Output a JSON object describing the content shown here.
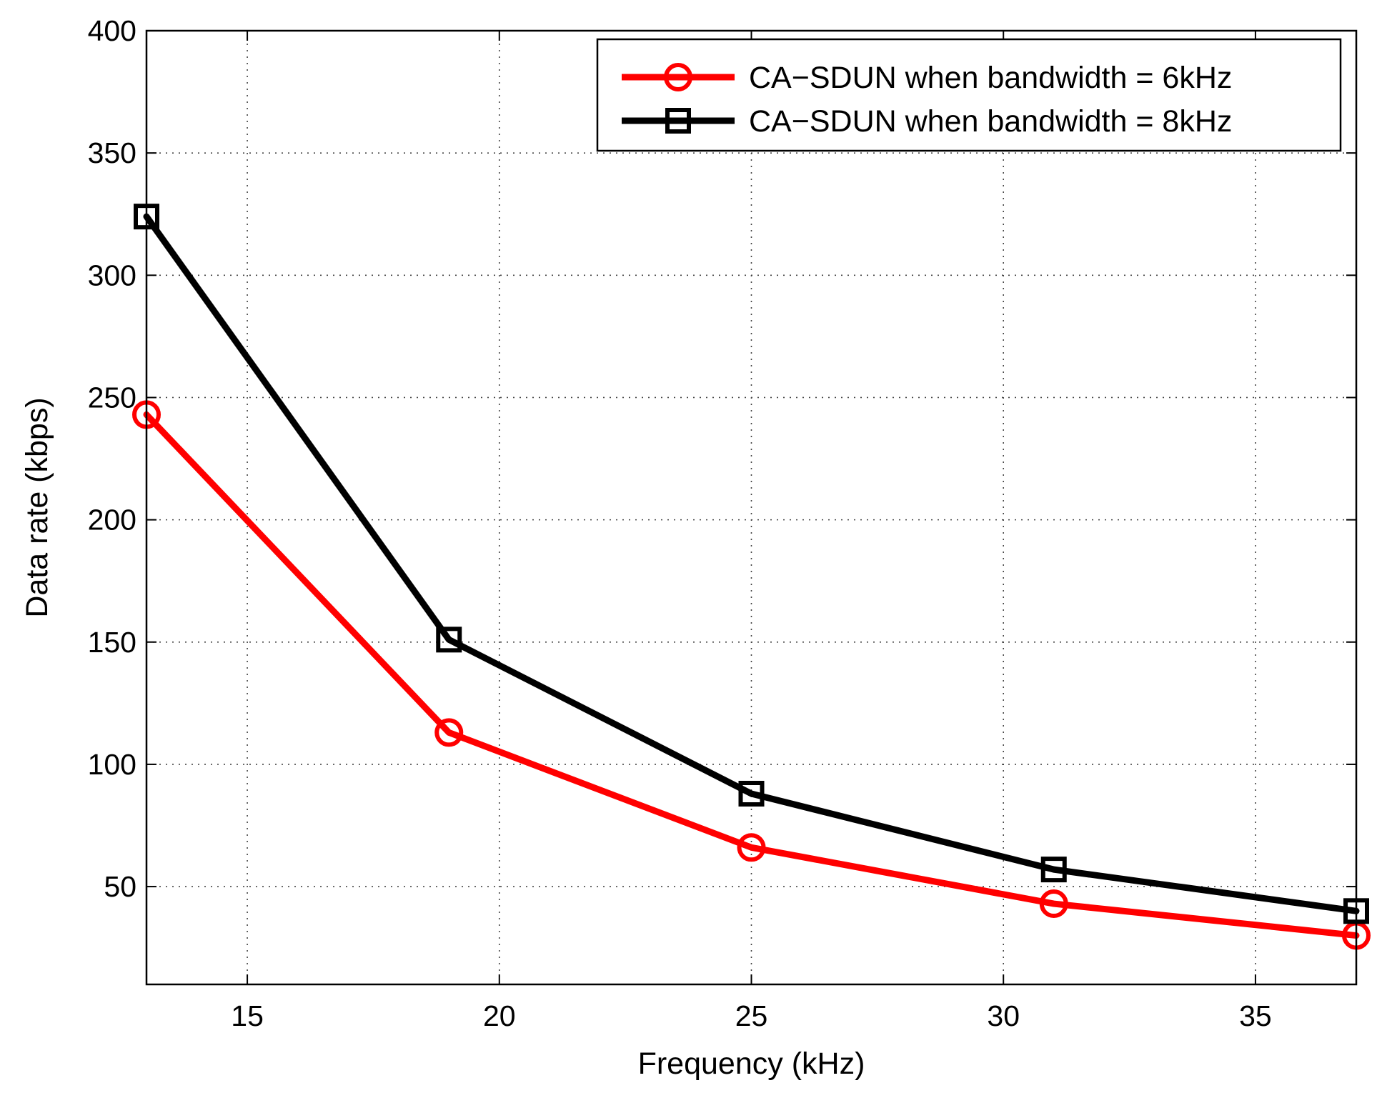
{
  "chart_data": {
    "type": "line",
    "title": "",
    "xlabel": "Frequency (kHz)",
    "ylabel": "Data rate (kbps)",
    "xlim": [
      13,
      37
    ],
    "ylim": [
      10,
      400
    ],
    "xticks": [
      15,
      20,
      25,
      30,
      35
    ],
    "yticks": [
      50,
      100,
      150,
      200,
      250,
      300,
      350,
      400
    ],
    "grid": true,
    "legend_position": "top-right",
    "x": [
      13,
      19,
      25,
      31,
      37
    ],
    "series": [
      {
        "name": "CA−SDUN when bandwidth = 6kHz",
        "color": "#ff0000",
        "marker": "circle",
        "values": [
          243,
          113,
          66,
          43,
          30
        ]
      },
      {
        "name": "CA−SDUN when bandwidth = 8kHz",
        "color": "#000000",
        "marker": "square",
        "values": [
          324,
          151,
          88,
          57,
          40
        ]
      }
    ]
  }
}
